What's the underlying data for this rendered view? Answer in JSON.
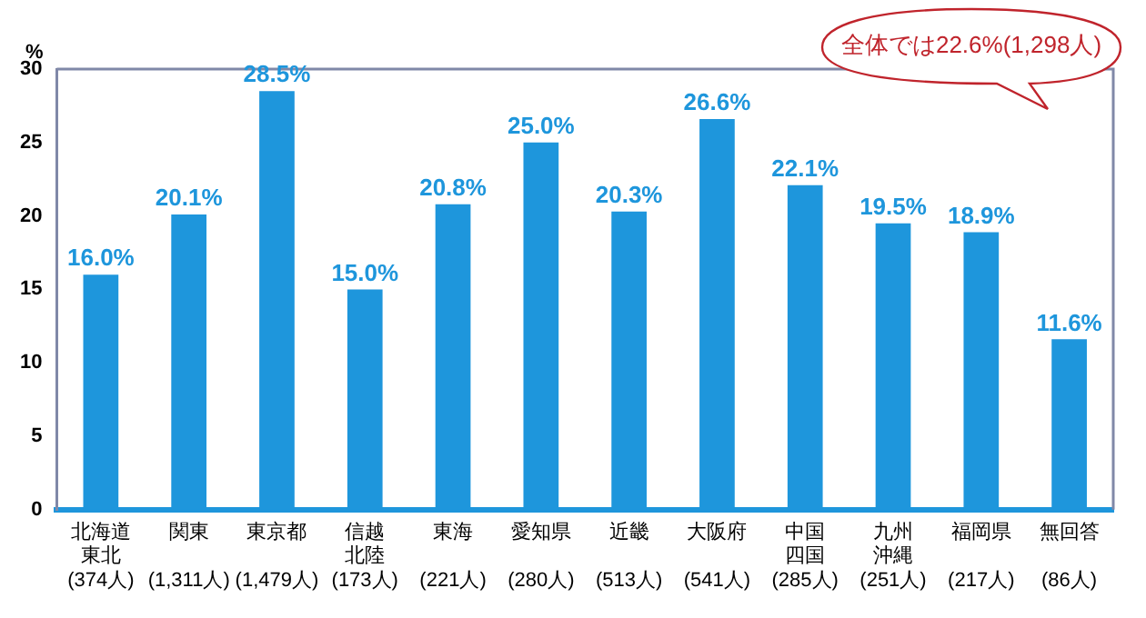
{
  "chart_data": {
    "type": "bar",
    "ylabel": "%",
    "categories": [
      "北海道東北(374人)",
      "関東(1,311人)",
      "東京都(1,479人)",
      "信越北陸(173人)",
      "東海(221人)",
      "愛知県(280人)",
      "近畿(513人)",
      "大阪府(541人)",
      "中国四国(285人)",
      "九州沖縄(251人)",
      "福岡県(217人)",
      "無回答(86人)"
    ],
    "values": [
      16.0,
      20.1,
      28.5,
      15.0,
      20.8,
      25.0,
      20.3,
      26.6,
      22.1,
      19.5,
      18.9,
      11.6
    ],
    "value_labels": [
      "16.0%",
      "20.1%",
      "28.5%",
      "15.0%",
      "20.8%",
      "25.0%",
      "20.3%",
      "26.6%",
      "22.1%",
      "19.5%",
      "18.9%",
      "11.6%"
    ],
    "color": "#1e96dc",
    "ylim": [
      0,
      30
    ],
    "yticks": [
      0,
      5,
      10,
      15,
      20,
      25,
      30
    ],
    "grid": false,
    "legend": false,
    "annotations": [
      "全体では22.6%(1,298人)"
    ]
  }
}
